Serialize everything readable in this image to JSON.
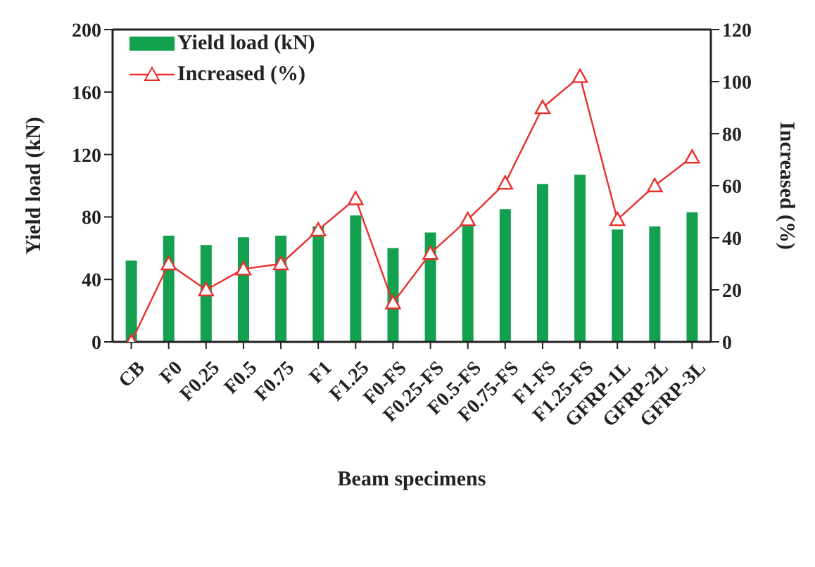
{
  "chart_data": {
    "type": "bar",
    "xlabel": "Beam specimens",
    "ylabel": "Yield load (kN)",
    "y2label": "Increased (%)",
    "categories": [
      "CB",
      "F0",
      "F0.25",
      "F0.5",
      "F0.75",
      "F1",
      "F1.25",
      "F0-FS",
      "F0.25-FS",
      "F0.5-FS",
      "F0.75-FS",
      "F1-FS",
      "F1.25-FS",
      "GFRP-1L",
      "GFRP-2L",
      "GFRP-3L"
    ],
    "series": [
      {
        "name": "Yield load (kN)",
        "color": "#13a04f",
        "values": [
          52,
          68,
          62,
          67,
          68,
          74,
          81,
          60,
          70,
          77,
          85,
          101,
          107,
          72,
          74,
          83
        ]
      },
      {
        "name": "Increased (%)",
        "type": "line",
        "axis": "y2",
        "color": "#e8312f",
        "marker": "triangle",
        "values": [
          0,
          30,
          20,
          28,
          30,
          43,
          55,
          15,
          34,
          47,
          61,
          90,
          102,
          47,
          60,
          71
        ]
      }
    ],
    "ylim": [
      0,
      200
    ],
    "yticks": [
      0,
      40,
      80,
      120,
      160,
      200
    ],
    "y2lim": [
      0,
      120
    ],
    "y2ticks": [
      0,
      20,
      40,
      60,
      80,
      100,
      120
    ],
    "legend": "top left",
    "grid": false
  }
}
